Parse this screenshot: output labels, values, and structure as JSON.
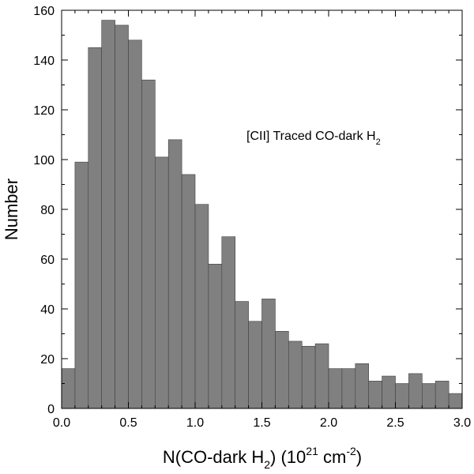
{
  "chart_data": {
    "type": "bar",
    "subtype": "histogram",
    "bin_width": 0.1,
    "bin_starts": [
      0.0,
      0.1,
      0.2,
      0.3,
      0.4,
      0.5,
      0.6,
      0.7,
      0.8,
      0.9,
      1.0,
      1.1,
      1.2,
      1.3,
      1.4,
      1.5,
      1.6,
      1.7,
      1.8,
      1.9,
      2.0,
      2.1,
      2.2,
      2.3,
      2.4,
      2.5,
      2.6,
      2.7,
      2.8,
      2.9
    ],
    "values": [
      16,
      99,
      145,
      156,
      154,
      148,
      132,
      101,
      108,
      94,
      82,
      58,
      69,
      43,
      35,
      44,
      31,
      27,
      25,
      26,
      16,
      16,
      18,
      11,
      13,
      10,
      14,
      10,
      11,
      6
    ],
    "xlim": [
      0.0,
      3.0
    ],
    "ylim": [
      0,
      160
    ],
    "x_ticks": [
      "0.0",
      "0.5",
      "1.0",
      "1.5",
      "2.0",
      "2.5",
      "3.0"
    ],
    "y_ticks": [
      "0",
      "20",
      "40",
      "60",
      "80",
      "100",
      "120",
      "140",
      "160"
    ],
    "xlabel": {
      "main": "N(CO-dark H",
      "sub": "2",
      "mid": ") (10",
      "sup1": "21",
      "unit": " cm",
      "sup2": "-2",
      "end": ")"
    },
    "ylabel": "Number",
    "annotation": {
      "main": "[CII] Traced CO-dark H",
      "sub": "2"
    },
    "bar_color": "#808080",
    "grid": false
  }
}
